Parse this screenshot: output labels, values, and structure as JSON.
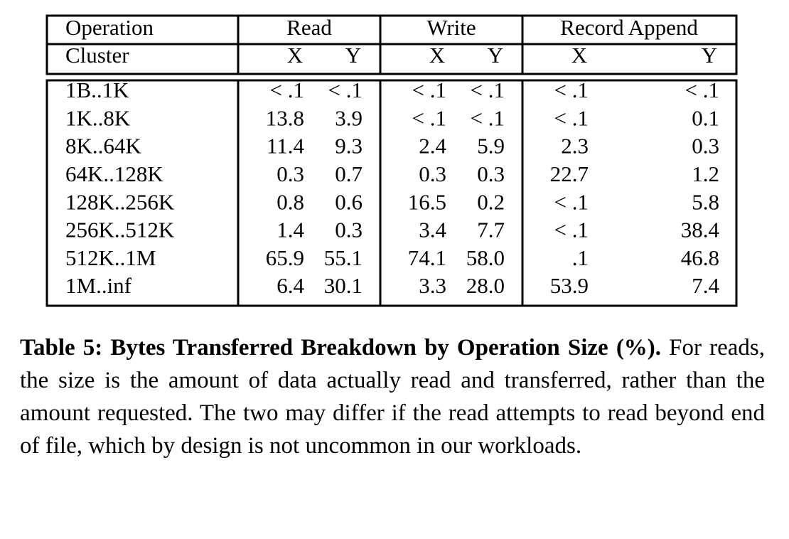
{
  "table": {
    "header": {
      "groups": [
        "Operation",
        "Read",
        "Write",
        "Record Append"
      ],
      "subheader": [
        "Cluster",
        "X",
        "Y",
        "X",
        "Y",
        "X",
        "Y"
      ]
    },
    "rows": [
      [
        "1B..1K",
        "< .1",
        "< .1",
        "< .1",
        "< .1",
        "< .1",
        "< .1"
      ],
      [
        "1K..8K",
        "13.8",
        "3.9",
        "< .1",
        "< .1",
        "< .1",
        "0.1"
      ],
      [
        "8K..64K",
        "11.4",
        "9.3",
        "2.4",
        "5.9",
        "2.3",
        "0.3"
      ],
      [
        "64K..128K",
        "0.3",
        "0.7",
        "0.3",
        "0.3",
        "22.7",
        "1.2"
      ],
      [
        "128K..256K",
        "0.8",
        "0.6",
        "16.5",
        "0.2",
        "< .1",
        "5.8"
      ],
      [
        "256K..512K",
        "1.4",
        "0.3",
        "3.4",
        "7.7",
        "< .1",
        "38.4"
      ],
      [
        "512K..1M",
        "65.9",
        "55.1",
        "74.1",
        "58.0",
        ".1",
        "46.8"
      ],
      [
        "1M..inf",
        "6.4",
        "30.1",
        "3.3",
        "28.0",
        "53.9",
        "7.4"
      ]
    ]
  },
  "caption": {
    "label": "Table 5: Bytes Transferred Breakdown by Operation Size (%).",
    "text": "For reads, the size is the amount of data actually read and transferred, rather than the amount requested. The two may differ if the read attempts to read beyond end of file, which by design is not uncommon in our workloads."
  }
}
